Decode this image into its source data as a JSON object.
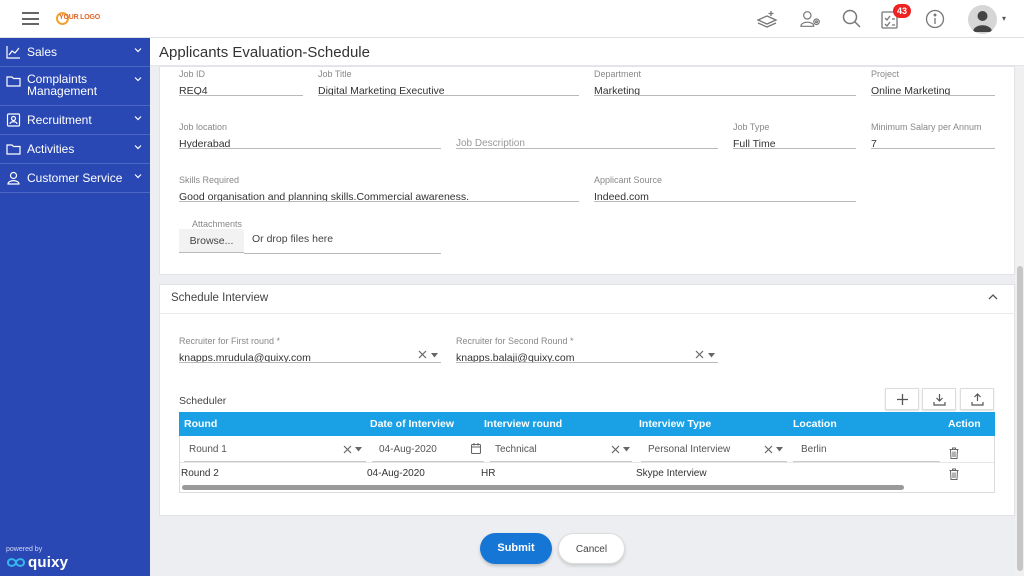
{
  "header": {
    "logo_text": "YOUR LOGO",
    "notification_count": "43"
  },
  "sidebar": {
    "items": [
      {
        "label": "Sales",
        "icon": "chart-icon"
      },
      {
        "label": "Complaints Management",
        "icon": "folder-icon"
      },
      {
        "label": "Recruitment",
        "icon": "id-card-icon"
      },
      {
        "label": "Activities",
        "icon": "folder-icon"
      },
      {
        "label": "Customer Service",
        "icon": "user-icon"
      }
    ],
    "powered_by": "powered by",
    "brand": "quixy"
  },
  "page": {
    "title": "Applicants Evaluation-Schedule"
  },
  "job": {
    "job_id_label": "Job ID",
    "job_id": "REQ4",
    "job_title_label": "Job Title",
    "job_title": "Digital Marketing Executive",
    "department_label": "Department",
    "department": "Marketing",
    "project_label": "Project",
    "project": "Online Marketing",
    "location_label": "Job location",
    "location": "Hyderabad",
    "description_placeholder": "Job Description",
    "job_type_label": "Job Type",
    "job_type": "Full Time",
    "min_salary_label": "Minimum Salary per Annum",
    "min_salary": "7",
    "skills_label": "Skills Required",
    "skills": "Good organisation and planning skills.Commercial awareness.",
    "source_label": "Applicant Source",
    "source": "Indeed.com",
    "attachments_label": "Attachments",
    "browse_label": "Browse...",
    "drop_text": "Or drop files here"
  },
  "schedule": {
    "section_title": "Schedule Interview",
    "recruiter1_label": "Recruiter for First round *",
    "recruiter1": "knapps.mrudula@quixy.com",
    "recruiter2_label": "Recruiter for Second Round *",
    "recruiter2": "knapps.balaji@quixy.com",
    "scheduler_label": "Scheduler",
    "columns": {
      "round": "Round",
      "date": "Date of Interview",
      "interview_round": "Interview round",
      "interview_type": "Interview Type",
      "location": "Location",
      "action": "Action"
    },
    "rows": [
      {
        "round": "Round 1",
        "date": "04-Aug-2020",
        "interview_round": "Technical",
        "interview_type": "Personal Interview",
        "location": "Berlin"
      },
      {
        "round": "Round 2",
        "date": "04-Aug-2020",
        "interview_round": "HR",
        "interview_type": "Skype Interview",
        "location": ""
      }
    ]
  },
  "actions": {
    "submit": "Submit",
    "cancel": "Cancel"
  },
  "colors": {
    "sidebar": "#2a48b3",
    "grid_header": "#1aa0e4",
    "submit": "#1676d6",
    "badge": "#e22222"
  }
}
